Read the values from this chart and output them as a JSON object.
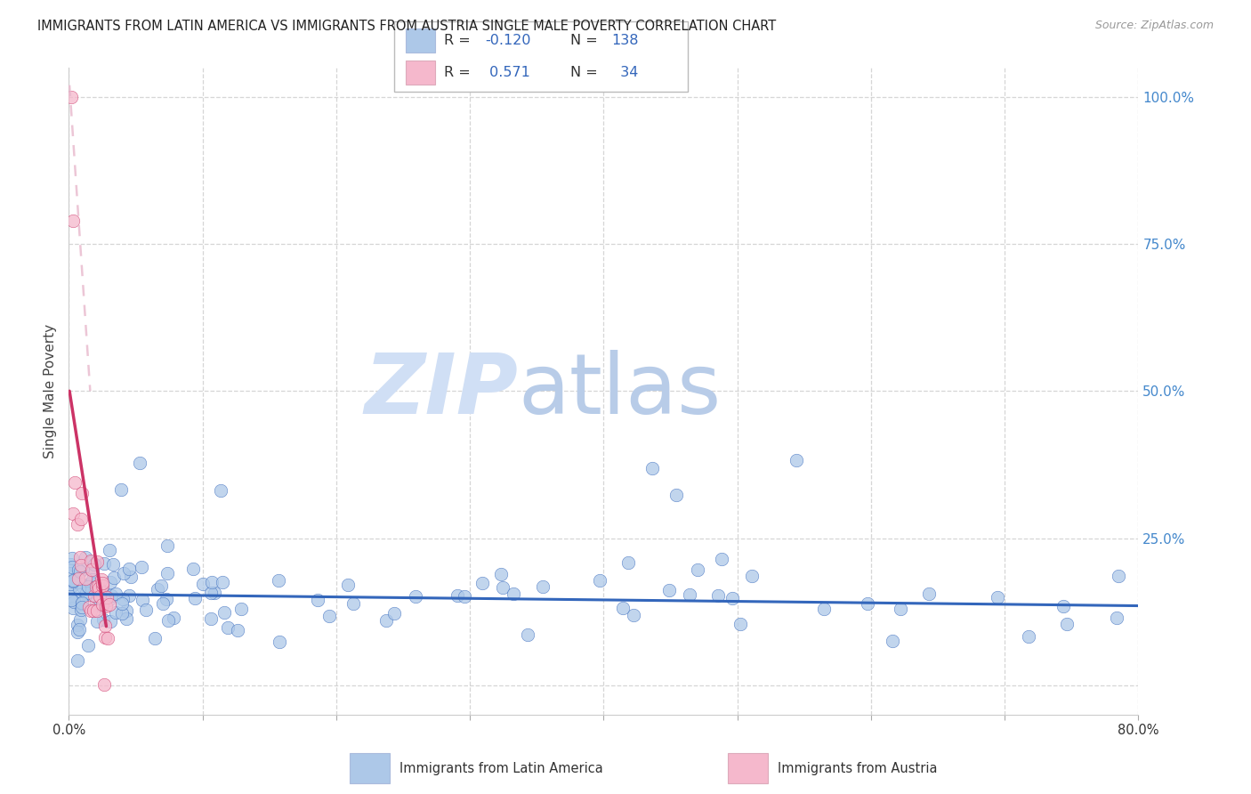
{
  "title": "IMMIGRANTS FROM LATIN AMERICA VS IMMIGRANTS FROM AUSTRIA SINGLE MALE POVERTY CORRELATION CHART",
  "source": "Source: ZipAtlas.com",
  "ylabel": "Single Male Poverty",
  "xlim": [
    0.0,
    0.8
  ],
  "ylim": [
    -0.05,
    1.05
  ],
  "yticks": [
    0.0,
    0.25,
    0.5,
    0.75,
    1.0
  ],
  "ytick_labels": [
    "",
    "25.0%",
    "50.0%",
    "75.0%",
    "100.0%"
  ],
  "xticks": [
    0.0,
    0.1,
    0.2,
    0.3,
    0.4,
    0.5,
    0.6,
    0.7,
    0.8
  ],
  "xtick_labels": [
    "0.0%",
    "",
    "",
    "",
    "",
    "",
    "",
    "",
    "80.0%"
  ],
  "color_blue": "#adc8e8",
  "color_blue_line": "#3366bb",
  "color_pink": "#f5b8cc",
  "color_pink_line": "#cc3366",
  "color_pink_dash": "#e8b8cc",
  "watermark_zip": "ZIP",
  "watermark_atlas": "atlas",
  "watermark_color_zip": "#d0dff5",
  "watermark_color_atlas": "#b8cce8",
  "background": "#ffffff",
  "grid_color": "#cccccc",
  "title_color": "#222222",
  "right_axis_color": "#4488cc",
  "legend1_label": "Immigrants from Latin America",
  "legend2_label": "Immigrants from Austria",
  "legend_text_color": "#333333",
  "legend_value_color": "#3366bb"
}
